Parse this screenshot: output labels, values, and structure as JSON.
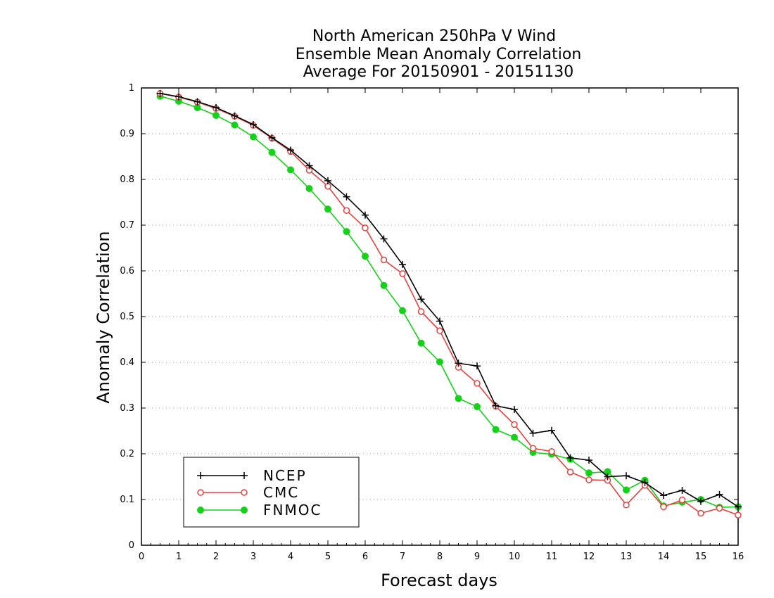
{
  "chart_data": {
    "type": "line",
    "title_lines": [
      "North American 250hPa V Wind",
      "Ensemble Mean Anomaly Correlation",
      "Average For 20150901 - 20151130"
    ],
    "xlabel": "Forecast days",
    "ylabel": "Anomaly Correlation",
    "xlim": [
      0,
      16
    ],
    "ylim": [
      0,
      1
    ],
    "xticks": [
      0,
      1,
      2,
      3,
      4,
      5,
      6,
      7,
      8,
      9,
      10,
      11,
      12,
      13,
      14,
      15,
      16
    ],
    "yticks": [
      0,
      0.1,
      0.2,
      0.3,
      0.4,
      0.5,
      0.6,
      0.7,
      0.8,
      0.9,
      1
    ],
    "ytick_labels": [
      "0",
      "0.1",
      "0.2",
      "0.3",
      "0.4",
      "0.5",
      "0.6",
      "0.7",
      "0.8",
      "0.9",
      "1"
    ],
    "grid": "horizontal-dotted",
    "legend_position": "bottom-left",
    "x": [
      0.5,
      1,
      1.5,
      2,
      2.5,
      3,
      3.5,
      4,
      4.5,
      5,
      5.5,
      6,
      6.5,
      7,
      7.5,
      8,
      8.5,
      9,
      9.5,
      10,
      10.5,
      11,
      11.5,
      12,
      12.5,
      13,
      13.5,
      14,
      14.5,
      15,
      15.5,
      16
    ],
    "series": [
      {
        "name": "NCEP",
        "color": "#000000",
        "marker": "plus",
        "values": [
          0.988,
          0.981,
          0.97,
          0.957,
          0.939,
          0.92,
          0.891,
          0.864,
          0.83,
          0.797,
          0.762,
          0.722,
          0.67,
          0.614,
          0.538,
          0.49,
          0.398,
          0.392,
          0.305,
          0.297,
          0.245,
          0.251,
          0.191,
          0.186,
          0.15,
          0.152,
          0.137,
          0.109,
          0.12,
          0.096,
          0.111,
          0.084
        ]
      },
      {
        "name": "CMC",
        "color": "#e8413e",
        "marker": "open-circle",
        "values": [
          0.988,
          0.98,
          0.969,
          0.955,
          0.938,
          0.918,
          0.89,
          0.861,
          0.82,
          0.785,
          0.732,
          0.694,
          0.624,
          0.594,
          0.511,
          0.469,
          0.389,
          0.354,
          0.304,
          0.264,
          0.212,
          0.205,
          0.16,
          0.143,
          0.142,
          0.088,
          0.131,
          0.084,
          0.099,
          0.07,
          0.081,
          0.066
        ]
      },
      {
        "name": "FNMOC",
        "color": "#16d11a",
        "marker": "filled-circle",
        "values": [
          0.982,
          0.971,
          0.957,
          0.94,
          0.919,
          0.893,
          0.859,
          0.821,
          0.78,
          0.735,
          0.686,
          0.632,
          0.568,
          0.513,
          0.442,
          0.401,
          0.321,
          0.303,
          0.253,
          0.236,
          0.203,
          0.199,
          0.188,
          0.158,
          0.161,
          0.121,
          0.142,
          0.086,
          0.094,
          0.1,
          0.083,
          0.084
        ]
      }
    ]
  }
}
